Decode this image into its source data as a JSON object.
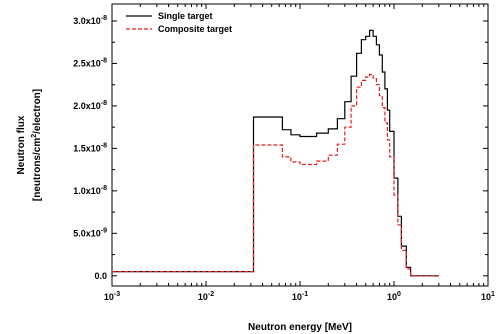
{
  "chart_data": {
    "type": "line",
    "title": "",
    "xlabel": "Neutron energy [MeV]",
    "ylabel_lines": [
      "Neutron flux",
      "[neutrons/cm",
      "2",
      "/electron]"
    ],
    "xscale": "log",
    "xlim": [
      0.001,
      10
    ],
    "ylim": [
      -1.2e-09,
      3.2e-08
    ],
    "grid": false,
    "legend_position": "top-left",
    "x_ticks": [
      {
        "value": 0.001,
        "base": "10",
        "exp": "-3"
      },
      {
        "value": 0.01,
        "base": "10",
        "exp": "-2"
      },
      {
        "value": 0.1,
        "base": "10",
        "exp": "-1"
      },
      {
        "value": 1,
        "base": "10",
        "exp": "0"
      },
      {
        "value": 10,
        "base": "10",
        "exp": "1"
      }
    ],
    "y_ticks": [
      {
        "value": 0,
        "label": "0.0",
        "exp": ""
      },
      {
        "value": 5e-09,
        "label": "5.0x10",
        "exp": "-9"
      },
      {
        "value": 1e-08,
        "label": "1.0x10",
        "exp": "-8"
      },
      {
        "value": 1.5e-08,
        "label": "1.5x10",
        "exp": "-8"
      },
      {
        "value": 2e-08,
        "label": "2.0x10",
        "exp": "-8"
      },
      {
        "value": 2.5e-08,
        "label": "2.5x10",
        "exp": "-8"
      },
      {
        "value": 3e-08,
        "label": "3.0x10",
        "exp": "-8"
      }
    ],
    "series": [
      {
        "name": "Single target",
        "color": "#000000",
        "style": "solid",
        "x": [
          0.001,
          0.032,
          0.032,
          0.05,
          0.065,
          0.08,
          0.1,
          0.12,
          0.15,
          0.2,
          0.25,
          0.3,
          0.35,
          0.4,
          0.45,
          0.5,
          0.55,
          0.6,
          0.65,
          0.7,
          0.75,
          0.8,
          0.85,
          0.9,
          1.0,
          1.1,
          1.2,
          1.35,
          1.5,
          1.7,
          3.0
        ],
        "y": [
          5e-10,
          5e-10,
          1.87e-08,
          1.87e-08,
          1.72e-08,
          1.66e-08,
          1.64e-08,
          1.64e-08,
          1.68e-08,
          1.73e-08,
          1.85e-08,
          2.05e-08,
          2.35e-08,
          2.62e-08,
          2.78e-08,
          2.82e-08,
          2.89e-08,
          2.82e-08,
          2.72e-08,
          2.6e-08,
          2.4e-08,
          2.2e-08,
          1.95e-08,
          1.7e-08,
          1.15e-08,
          7e-09,
          3.5e-09,
          1e-09,
          0,
          0,
          0
        ]
      },
      {
        "name": "Composite target",
        "color": "#e02020",
        "style": "dashed",
        "x": [
          0.001,
          0.032,
          0.032,
          0.05,
          0.065,
          0.08,
          0.1,
          0.12,
          0.15,
          0.2,
          0.25,
          0.3,
          0.35,
          0.4,
          0.45,
          0.5,
          0.55,
          0.6,
          0.65,
          0.7,
          0.75,
          0.8,
          0.85,
          0.9,
          1.0,
          1.1,
          1.2,
          1.35,
          1.5,
          1.7,
          3.0
        ],
        "y": [
          5e-10,
          5e-10,
          1.54e-08,
          1.54e-08,
          1.4e-08,
          1.34e-08,
          1.31e-08,
          1.31e-08,
          1.35e-08,
          1.42e-08,
          1.55e-08,
          1.75e-08,
          2e-08,
          2.22e-08,
          2.3e-08,
          2.34e-08,
          2.37e-08,
          2.33e-08,
          2.25e-08,
          2.12e-08,
          1.98e-08,
          1.8e-08,
          1.6e-08,
          1.4e-08,
          9.5e-09,
          6e-09,
          3e-09,
          8e-10,
          0,
          0,
          0
        ]
      }
    ]
  }
}
